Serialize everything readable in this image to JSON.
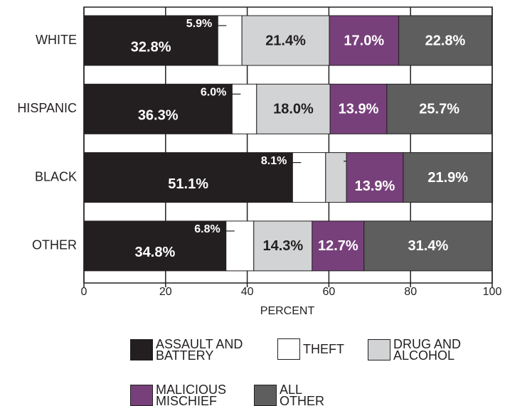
{
  "chart_data": {
    "type": "stacked_barh",
    "xlabel": "PERCENT",
    "categories": [
      "WHITE",
      "HISPANIC",
      "BLACK",
      "OTHER"
    ],
    "series": [
      {
        "name": "ASSAULT AND BATTERY",
        "color": "#231f20",
        "values": [
          32.8,
          36.3,
          51.1,
          34.8
        ],
        "value_labels": [
          "32.8%",
          "36.3%",
          "51.1%",
          "34.8%"
        ]
      },
      {
        "name": "THEFT",
        "color": "#ffffff",
        "values": [
          5.9,
          6.0,
          8.1,
          6.8
        ],
        "value_labels": [
          "5.9%",
          "6.0%",
          "8.1%",
          "6.8%"
        ]
      },
      {
        "name": "DRUG AND ALCOHOL",
        "color": "#d1d3d4",
        "values": [
          21.4,
          18.0,
          5.1,
          14.3
        ],
        "value_labels": [
          "21.4%",
          "18.0%",
          "5.1%",
          "14.3%"
        ]
      },
      {
        "name": "MALICIOUS MISCHIEF",
        "color": "#77407b",
        "values": [
          17.0,
          13.9,
          13.9,
          12.7
        ],
        "value_labels": [
          "17.0%",
          "13.9%",
          "13.9%",
          "12.7%"
        ]
      },
      {
        "name": "ALL OTHER",
        "color": "#5e5e5e",
        "values": [
          22.8,
          25.7,
          21.9,
          31.4
        ],
        "value_labels": [
          "22.8%",
          "25.7%",
          "21.9%",
          "31.4%"
        ]
      }
    ],
    "xlim": [
      0,
      100
    ],
    "xticks": [
      0,
      20,
      40,
      60,
      80,
      100
    ],
    "grid": true
  }
}
